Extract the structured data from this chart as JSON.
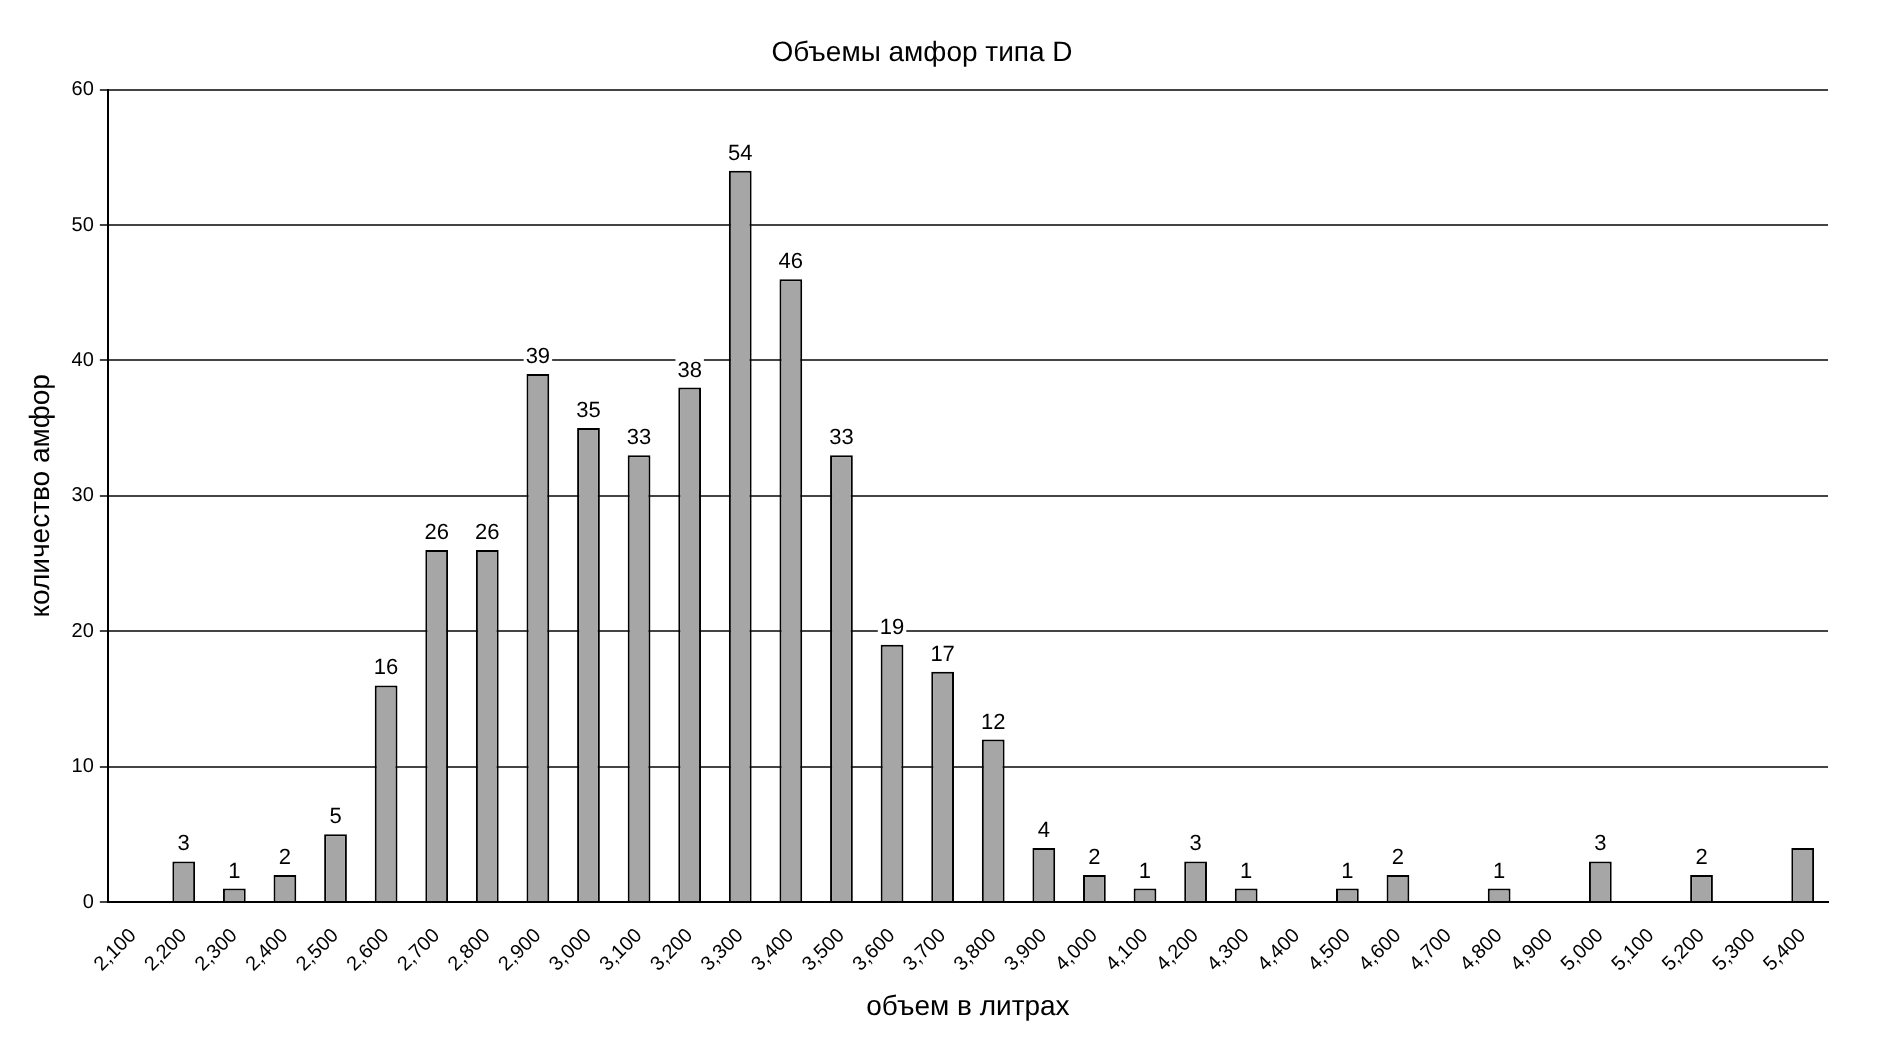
{
  "chart_data": {
    "type": "bar",
    "title": "Объемы амфор типа D",
    "xlabel": "объем в литрах",
    "ylabel": "количество амфор",
    "categories": [
      "2,100",
      "2,200",
      "2,300",
      "2,400",
      "2,500",
      "2,600",
      "2,700",
      "2,800",
      "2,900",
      "3,000",
      "3,100",
      "3,200",
      "3,300",
      "3,400",
      "3,500",
      "3,600",
      "3,700",
      "3,800",
      "3,900",
      "4,000",
      "4,100",
      "4,200",
      "4,300",
      "4,400",
      "4,500",
      "4,600",
      "4,700",
      "4,800",
      "4,900",
      "5,000",
      "5,100",
      "5,200",
      "5,300",
      "5,400"
    ],
    "values": [
      0,
      3,
      1,
      2,
      5,
      16,
      26,
      26,
      39,
      35,
      33,
      38,
      54,
      46,
      33,
      19,
      17,
      12,
      4,
      2,
      1,
      3,
      1,
      0,
      1,
      2,
      0,
      1,
      0,
      3,
      0,
      2,
      0,
      4
    ],
    "value_labels": [
      null,
      "3",
      "1",
      "2",
      "5",
      "16",
      "26",
      "26",
      "39",
      "35",
      "33",
      "38",
      "54",
      "46",
      "33",
      "19",
      "17",
      "12",
      "4",
      "2",
      "1",
      "3",
      "1",
      null,
      "1",
      "2",
      null,
      "1",
      null,
      "3",
      null,
      "2",
      null,
      null
    ],
    "color": "#a6a6a6",
    "ylim": [
      0,
      60
    ],
    "yticks": [
      0,
      10,
      20,
      30,
      40,
      50,
      60
    ],
    "grid": "y"
  }
}
